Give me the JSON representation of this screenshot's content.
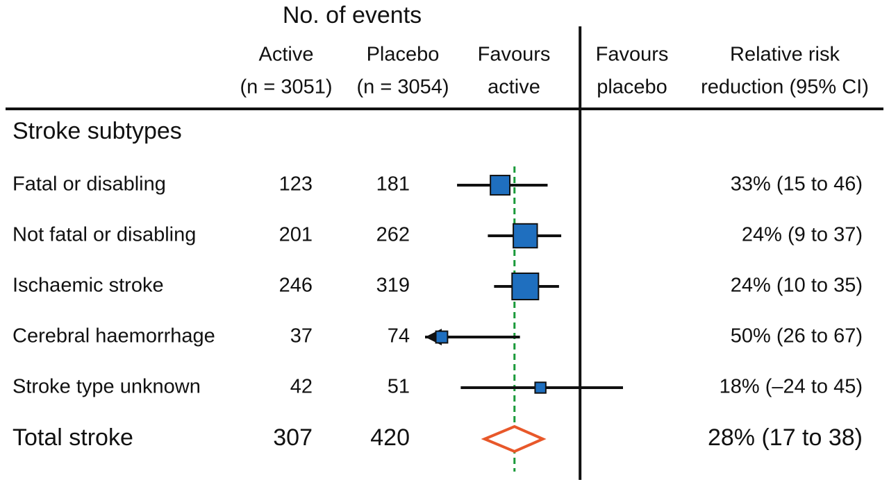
{
  "chart_data": {
    "type": "forest",
    "header": {
      "events": "No. of events",
      "active": [
        "Active",
        "(n = 3051)"
      ],
      "placebo": [
        "Placebo",
        "(n = 3054)"
      ],
      "favours_active": [
        "Favours",
        "active"
      ],
      "favours_placebo": [
        "Favours",
        "placebo"
      ],
      "rrr": [
        "Relative risk",
        "reduction (95% CI)"
      ]
    },
    "section": "Stroke subtypes",
    "xscale": "log",
    "xlim": [
      54,
      -24
    ],
    "reference": 0,
    "marker_color": "#1f6fbf",
    "diamond_color": "#e8582a",
    "overall_line_color": "#1a9a3a",
    "rows": [
      {
        "label": "Fatal or disabling",
        "active": 123,
        "placebo": 181,
        "rrr": 33,
        "ci": [
          15,
          46
        ],
        "value_label": "33% (15 to 46)"
      },
      {
        "label": "Not fatal or disabling",
        "active": 201,
        "placebo": 262,
        "rrr": 24,
        "ci": [
          9,
          37
        ],
        "value_label": "24% (9 to 37)"
      },
      {
        "label": "Ischaemic stroke",
        "active": 246,
        "placebo": 319,
        "rrr": 24,
        "ci": [
          10,
          35
        ],
        "value_label": "24% (10 to 35)"
      },
      {
        "label": "Cerebral haemorrhage",
        "active": 37,
        "placebo": 74,
        "rrr": 50,
        "ci": [
          26,
          67
        ],
        "value_label": "50% (26 to 67)"
      },
      {
        "label": "Stroke type unknown",
        "active": 42,
        "placebo": 51,
        "rrr": 18,
        "ci": [
          -24,
          45
        ],
        "value_label": "18% (–24 to 45)"
      }
    ],
    "total": {
      "label": "Total stroke",
      "active": 307,
      "placebo": 420,
      "rrr": 28,
      "ci": [
        17,
        38
      ],
      "value_label": "28% (17 to 38)"
    }
  }
}
